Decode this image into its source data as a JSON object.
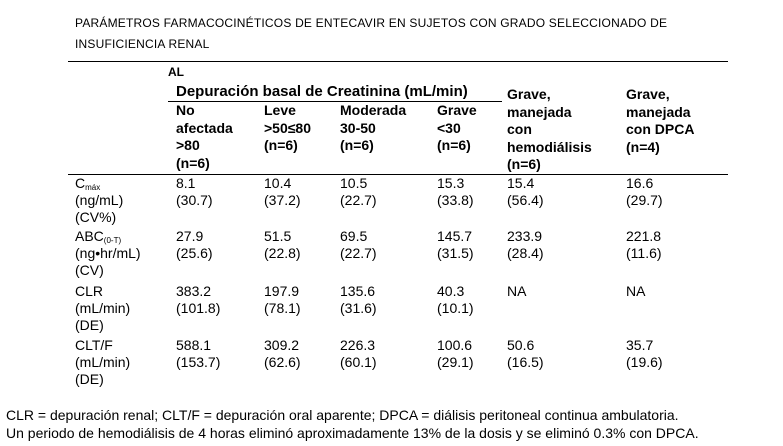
{
  "title": {
    "line1": "PARÁMETROS FARMACOCINÉTICOS DE ENTECAVIR EN SUJETOS CON GRADO SELECCIONADO DE",
    "line2": "INSUFICIENCIA RENAL"
  },
  "header": {
    "al": "AL",
    "group_label": "Depuración basal de Creatinina (mL/min)",
    "columns": [
      {
        "lines": [
          "No",
          "afectada",
          ">80",
          "(n=6)"
        ]
      },
      {
        "lines": [
          "Leve",
          ">50≤80",
          "(n=6)"
        ]
      },
      {
        "lines": [
          "Moderada",
          "30-50",
          "(n=6)"
        ]
      },
      {
        "lines": [
          "Grave",
          "<30",
          "(n=6)"
        ]
      },
      {
        "lines": [
          "Grave,",
          "manejada",
          "con",
          "hemodiálisis",
          "(n=6)"
        ]
      },
      {
        "lines": [
          "Grave,",
          "manejada",
          "con DPCA",
          "(n=4)"
        ]
      }
    ]
  },
  "rows": [
    {
      "label_main": "C",
      "label_sub": "máx",
      "label_rest": [
        "(ng/mL)",
        "(CV%)"
      ],
      "values": [
        "8.1",
        "10.4",
        "10.5",
        "15.3",
        "15.4",
        "16.6"
      ],
      "spread": [
        "(30.7)",
        "(37.2)",
        "(22.7)",
        "(33.8)",
        "(56.4)",
        "(29.7)"
      ]
    },
    {
      "label_main": "ABC",
      "label_sub": "(0-T)",
      "label_rest": [
        "(ng•hr/mL)",
        "(CV)"
      ],
      "values": [
        "27.9",
        "51.5",
        "69.5",
        "145.7",
        "233.9",
        "221.8"
      ],
      "spread": [
        "(25.6)",
        "(22.8)",
        "(22.7)",
        "(31.5)",
        "(28.4)",
        "(11.6)"
      ]
    },
    {
      "label_main": "CLR",
      "label_sub": "",
      "label_rest": [
        "(mL/min)",
        "(DE)"
      ],
      "values": [
        "383.2",
        "197.9",
        "135.6",
        "40.3",
        "NA",
        "NA"
      ],
      "spread": [
        "(101.8)",
        "(78.1)",
        "(31.6)",
        "(10.1)",
        "",
        ""
      ]
    },
    {
      "label_main": "CLT/F",
      "label_sub": "",
      "label_rest": [
        "(mL/min)",
        "(DE)"
      ],
      "values": [
        "588.1",
        "309.2",
        "226.3",
        "100.6",
        "50.6",
        "35.7"
      ],
      "spread": [
        "(153.7)",
        "(62.6)",
        "(60.1)",
        "(29.1)",
        "(16.5)",
        "(19.6)"
      ]
    }
  ],
  "footnotes": {
    "line1": "CLR = depuración renal; CLT/F = depuración oral aparente; DPCA = diálisis peritoneal continua ambulatoria.",
    "line2": "Un periodo de hemodiálisis de 4 horas eliminó aproximadamente 13% de la dosis y se eliminó 0.3% con DPCA."
  }
}
